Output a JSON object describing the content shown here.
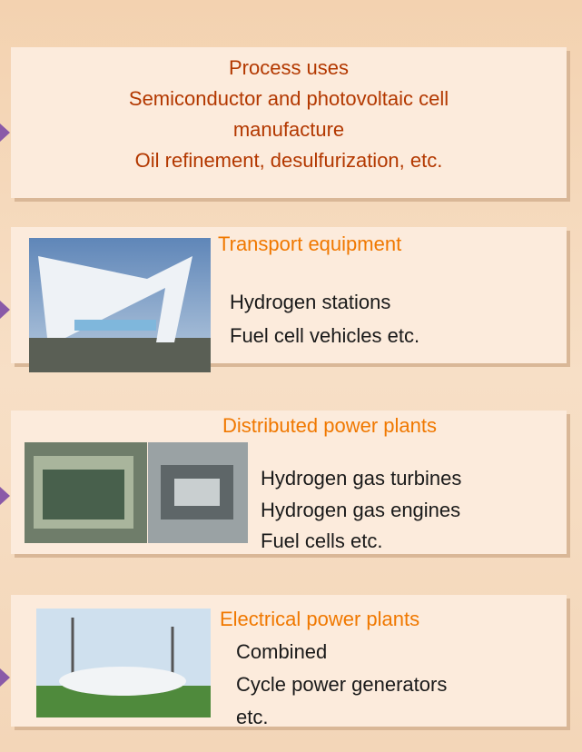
{
  "boxes": [
    {
      "lines": [
        "Process uses",
        "Semiconductor and photovoltaic cell",
        "manufacture",
        "Oil refinement, desulfurization, etc."
      ]
    },
    {
      "title": "Transport equipment",
      "lines": [
        "Hydrogen stations",
        "Fuel cell vehicles etc."
      ]
    },
    {
      "title": "Distributed power plants",
      "lines": [
        "Hydrogen gas turbines",
        "Hydrogen gas engines",
        "Fuel cells etc."
      ]
    },
    {
      "title": "Electrical power plants",
      "lines": [
        "Combined",
        "Cycle power generators",
        "etc."
      ]
    }
  ]
}
